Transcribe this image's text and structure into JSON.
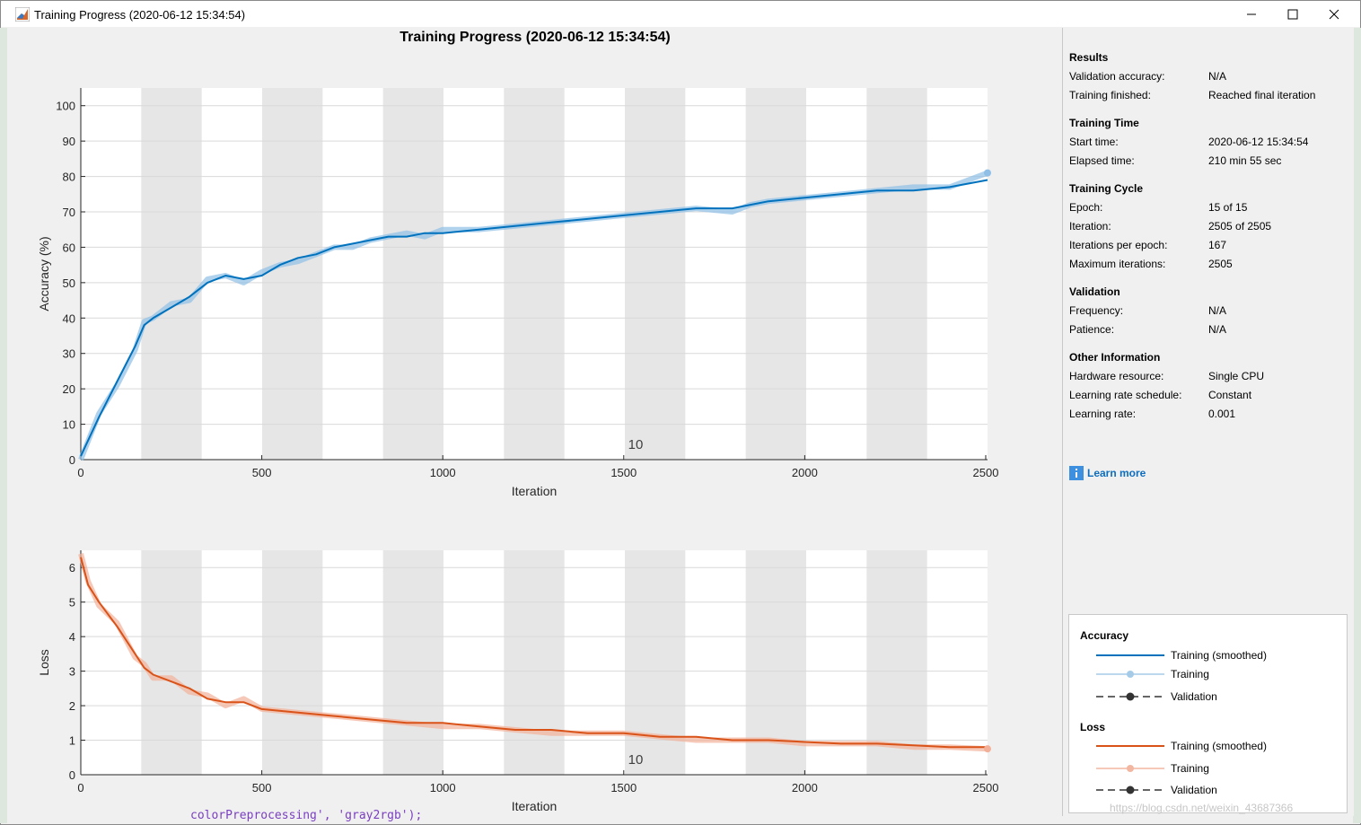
{
  "window": {
    "title": "Training Progress (2020-06-12 15:34:54)",
    "minimize_icon": "minimize-icon",
    "maximize_icon": "maximize-icon",
    "close_icon": "close-icon"
  },
  "page_title": "Training Progress (2020-06-12 15:34:54)",
  "colors": {
    "accuracy_smoothed": "#0072bd",
    "accuracy_training": "#8fbfe6",
    "loss_smoothed": "#d95319",
    "loss_training": "#f2b099",
    "epoch_band": "#e6e6e6",
    "link": "#0d6ebf"
  },
  "chart_data": [
    {
      "type": "line",
      "name": "accuracy",
      "ylabel": "Accuracy (%)",
      "xlabel": "Iteration",
      "xlim": [
        0,
        2505
      ],
      "ylim": [
        0,
        105
      ],
      "xticks": [
        0,
        500,
        1000,
        1500,
        2000,
        2500
      ],
      "yticks": [
        0,
        10,
        20,
        30,
        40,
        50,
        60,
        70,
        80,
        90,
        100
      ],
      "epoch_boundaries": [
        167,
        334,
        501,
        668,
        835,
        1002,
        1169,
        1336,
        1503,
        1670,
        1837,
        2004,
        2171,
        2338,
        2505
      ],
      "epoch_label": "10",
      "epoch_label_iteration": 1503,
      "series": [
        {
          "name": "Training (smoothed)",
          "x": [
            0,
            50,
            100,
            150,
            175,
            200,
            250,
            300,
            350,
            400,
            450,
            500,
            550,
            600,
            650,
            700,
            750,
            800,
            850,
            900,
            950,
            1000,
            1100,
            1200,
            1300,
            1400,
            1500,
            1600,
            1700,
            1800,
            1850,
            1900,
            2000,
            2100,
            2200,
            2300,
            2400,
            2505
          ],
          "values": [
            1,
            12,
            22,
            32,
            38,
            40,
            43,
            46,
            50,
            52,
            51,
            52,
            55,
            57,
            58,
            60,
            61,
            62,
            63,
            63,
            64,
            64,
            65,
            66,
            67,
            68,
            69,
            70,
            71,
            71,
            72,
            73,
            74,
            75,
            76,
            76,
            77,
            79
          ]
        },
        {
          "name": "Training",
          "x": [
            0,
            50,
            100,
            150,
            175,
            200,
            250,
            300,
            350,
            400,
            450,
            500,
            550,
            600,
            650,
            700,
            750,
            800,
            850,
            900,
            950,
            1000,
            1100,
            1200,
            1300,
            1400,
            1500,
            1600,
            1700,
            1800,
            1850,
            1900,
            2000,
            2100,
            2200,
            2300,
            2400,
            2505
          ],
          "values": [
            0,
            13,
            21,
            31,
            39,
            40,
            44,
            45,
            51,
            52,
            50,
            53,
            55,
            56,
            58,
            60,
            60,
            62,
            63,
            64,
            63,
            65,
            65,
            66,
            67,
            68,
            69,
            70,
            71,
            70,
            72,
            73,
            74,
            75,
            76,
            77,
            77,
            81
          ]
        }
      ]
    },
    {
      "type": "line",
      "name": "loss",
      "ylabel": "Loss",
      "xlabel": "Iteration",
      "xlim": [
        0,
        2505
      ],
      "ylim": [
        0,
        6.5
      ],
      "xticks": [
        0,
        500,
        1000,
        1500,
        2000,
        2500
      ],
      "yticks": [
        0,
        1,
        2,
        3,
        4,
        5,
        6
      ],
      "epoch_boundaries": [
        167,
        334,
        501,
        668,
        835,
        1002,
        1169,
        1336,
        1503,
        1670,
        1837,
        2004,
        2171,
        2338,
        2505
      ],
      "epoch_label": "10",
      "epoch_label_iteration": 1503,
      "series": [
        {
          "name": "Training (smoothed)",
          "x": [
            0,
            20,
            50,
            100,
            150,
            175,
            200,
            250,
            300,
            350,
            400,
            450,
            500,
            600,
            700,
            800,
            900,
            1000,
            1100,
            1200,
            1300,
            1400,
            1500,
            1600,
            1700,
            1800,
            1900,
            2000,
            2100,
            2200,
            2300,
            2400,
            2505
          ],
          "values": [
            6.3,
            5.5,
            5.0,
            4.3,
            3.5,
            3.1,
            2.9,
            2.7,
            2.5,
            2.2,
            2.1,
            2.1,
            1.9,
            1.8,
            1.7,
            1.6,
            1.5,
            1.5,
            1.4,
            1.3,
            1.3,
            1.2,
            1.2,
            1.1,
            1.1,
            1.0,
            1.0,
            0.95,
            0.9,
            0.9,
            0.85,
            0.8,
            0.8
          ]
        },
        {
          "name": "Training",
          "x": [
            0,
            20,
            50,
            100,
            150,
            175,
            200,
            250,
            300,
            350,
            400,
            450,
            500,
            600,
            700,
            800,
            900,
            1000,
            1100,
            1200,
            1300,
            1400,
            1500,
            1600,
            1700,
            1800,
            1900,
            2000,
            2100,
            2200,
            2300,
            2400,
            2505
          ],
          "values": [
            6.4,
            5.6,
            4.9,
            4.4,
            3.4,
            3.2,
            2.8,
            2.8,
            2.4,
            2.3,
            2.0,
            2.2,
            1.9,
            1.8,
            1.7,
            1.6,
            1.5,
            1.4,
            1.4,
            1.3,
            1.2,
            1.2,
            1.2,
            1.1,
            1.0,
            1.0,
            1.0,
            0.9,
            0.9,
            0.9,
            0.8,
            0.8,
            0.75
          ]
        }
      ]
    }
  ],
  "info": {
    "results_heading": "Results",
    "validation_accuracy_label": "Validation accuracy:",
    "validation_accuracy_value": "N/A",
    "training_finished_label": "Training finished:",
    "training_finished_value": "Reached final iteration",
    "training_time_heading": "Training Time",
    "start_time_label": "Start time:",
    "start_time_value": "2020-06-12 15:34:54",
    "elapsed_time_label": "Elapsed time:",
    "elapsed_time_value": "210 min 55 sec",
    "training_cycle_heading": "Training Cycle",
    "epoch_label": "Epoch:",
    "epoch_value": "15 of 15",
    "iteration_label": "Iteration:",
    "iteration_value": "2505 of 2505",
    "iterations_per_epoch_label": "Iterations per epoch:",
    "iterations_per_epoch_value": "167",
    "maximum_iterations_label": "Maximum iterations:",
    "maximum_iterations_value": "2505",
    "validation_heading": "Validation",
    "frequency_label": "Frequency:",
    "frequency_value": "N/A",
    "patience_label": "Patience:",
    "patience_value": "N/A",
    "other_info_heading": "Other Information",
    "hardware_label": "Hardware resource:",
    "hardware_value": "Single CPU",
    "lr_schedule_label": "Learning rate schedule:",
    "lr_schedule_value": "Constant",
    "lr_label": "Learning rate:",
    "lr_value": "0.001",
    "learn_more": "Learn more"
  },
  "legend": {
    "accuracy_heading": "Accuracy",
    "loss_heading": "Loss",
    "training_smoothed": "Training (smoothed)",
    "training": "Training",
    "validation": "Validation"
  },
  "background": {
    "watermark": "https://blog.csdn.net/weixin_43687366",
    "code_fragment": "colorPreprocessing', 'gray2rgb');"
  }
}
